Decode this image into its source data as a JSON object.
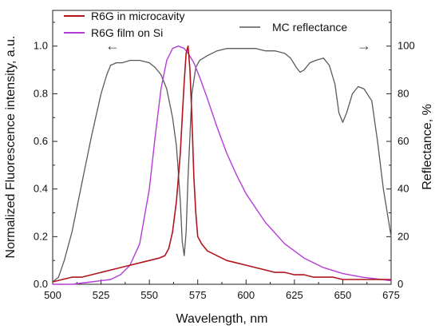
{
  "chart_data": {
    "type": "line",
    "xlabel": "Wavelength, nm",
    "ylabel_left": "Normalized Fluorescence intensity, a.u.",
    "ylabel_right": "Reflectance, %",
    "xlim": [
      500,
      675
    ],
    "ylim_left": [
      0,
      1.15
    ],
    "ylim_right": [
      0,
      115
    ],
    "x_ticks": [
      500,
      525,
      550,
      575,
      600,
      625,
      650,
      675
    ],
    "y_left_ticks": [
      "0.0",
      "0.2",
      "0.4",
      "0.6",
      "0.8",
      "1.0"
    ],
    "y_right_ticks": [
      "0",
      "20",
      "40",
      "60",
      "80",
      "100"
    ],
    "grid": false,
    "legend_placement": "top-left",
    "series": [
      {
        "name": "R6G in microcavity",
        "axis": "left",
        "color": "#b0141c",
        "x": [
          500,
          505,
          510,
          515,
          520,
          525,
          530,
          535,
          540,
          545,
          550,
          555,
          558,
          560,
          562,
          564,
          565,
          566,
          567,
          568,
          569,
          570,
          571,
          572,
          573,
          574,
          575,
          577,
          580,
          585,
          590,
          595,
          600,
          605,
          610,
          615,
          620,
          625,
          630,
          635,
          640,
          645,
          650,
          655,
          660,
          665,
          670,
          675
        ],
        "y": [
          0.01,
          0.02,
          0.03,
          0.03,
          0.04,
          0.05,
          0.06,
          0.07,
          0.08,
          0.09,
          0.1,
          0.11,
          0.12,
          0.15,
          0.22,
          0.35,
          0.45,
          0.55,
          0.7,
          0.85,
          0.97,
          1.0,
          0.9,
          0.7,
          0.45,
          0.3,
          0.2,
          0.17,
          0.14,
          0.12,
          0.1,
          0.09,
          0.08,
          0.07,
          0.06,
          0.05,
          0.05,
          0.04,
          0.04,
          0.03,
          0.03,
          0.03,
          0.02,
          0.02,
          0.02,
          0.02,
          0.02,
          0.02
        ]
      },
      {
        "name": "R6G film on Si",
        "axis": "left",
        "color": "#b53bd9",
        "x": [
          500,
          510,
          520,
          530,
          535,
          540,
          545,
          550,
          553,
          556,
          559,
          562,
          565,
          568,
          570,
          573,
          576,
          580,
          585,
          590,
          595,
          600,
          610,
          620,
          630,
          640,
          650,
          660,
          670,
          675
        ],
        "y": [
          0.0,
          0.0,
          0.01,
          0.02,
          0.04,
          0.08,
          0.17,
          0.4,
          0.62,
          0.82,
          0.94,
          0.99,
          1.0,
          0.99,
          0.97,
          0.93,
          0.87,
          0.78,
          0.66,
          0.55,
          0.46,
          0.38,
          0.26,
          0.17,
          0.11,
          0.07,
          0.045,
          0.03,
          0.02,
          0.015
        ]
      },
      {
        "name": "MC reflectance",
        "axis": "right",
        "color": "#5a5a5a",
        "x": [
          500,
          503,
          506,
          510,
          515,
          520,
          525,
          528,
          530,
          533,
          536,
          540,
          545,
          550,
          553,
          556,
          559,
          562,
          564,
          566,
          567,
          568,
          569,
          570,
          572,
          574,
          576,
          580,
          585,
          590,
          595,
          600,
          605,
          610,
          615,
          620,
          623,
          626,
          628,
          630,
          633,
          636,
          640,
          643,
          646,
          648,
          650,
          652,
          655,
          658,
          661,
          665,
          668,
          671,
          673,
          675
        ],
        "y": [
          1,
          3,
          10,
          22,
          42,
          62,
          80,
          88,
          92,
          93,
          93,
          94,
          94,
          93,
          91,
          88,
          82,
          70,
          58,
          35,
          18,
          12,
          22,
          45,
          80,
          91,
          94,
          96,
          98,
          99,
          99,
          99,
          99,
          98,
          98,
          97,
          95,
          91,
          89,
          90,
          93,
          94,
          95,
          92,
          84,
          72,
          68,
          72,
          80,
          83,
          82,
          77,
          60,
          40,
          30,
          20
        ]
      }
    ]
  },
  "arrows": {
    "left": "←",
    "right": "→"
  }
}
